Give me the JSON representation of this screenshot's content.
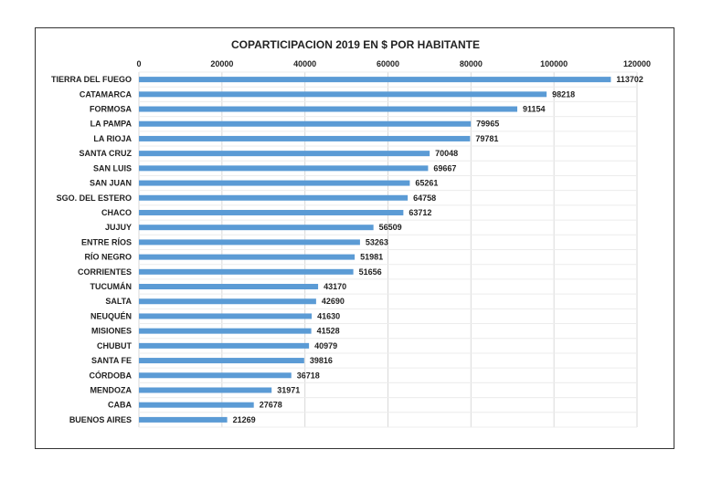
{
  "chart_data": {
    "type": "bar",
    "orientation": "horizontal",
    "title": "COPARTICIPACION 2019 EN $ POR HABITANTE",
    "xlim": [
      0,
      120000
    ],
    "x_ticks": [
      "0",
      "20000",
      "40000",
      "60000",
      "80000",
      "100000",
      "120000"
    ],
    "x_axis_position": "top",
    "grid": true,
    "bar_color": "#5b9bd5",
    "categories": [
      "TIERRA DEL FUEGO",
      "CATAMARCA",
      "FORMOSA",
      "LA PAMPA",
      "LA RIOJA",
      "SANTA CRUZ",
      "SAN LUIS",
      "SAN JUAN",
      "SGO. DEL ESTERO",
      "CHACO",
      "JUJUY",
      "ENTRE RÍOS",
      "RÍO NEGRO",
      "CORRIENTES",
      "TUCUMÁN",
      "SALTA",
      "NEUQUÉN",
      "MISIONES",
      "CHUBUT",
      "SANTA FE",
      "CÓRDOBA",
      "MENDOZA",
      "CABA",
      "BUENOS AIRES"
    ],
    "values": [
      113702,
      98218,
      91154,
      79965,
      79781,
      70048,
      69667,
      65261,
      64758,
      63712,
      56509,
      53263,
      51981,
      51656,
      43170,
      42690,
      41630,
      41528,
      40979,
      39816,
      36718,
      31971,
      27678,
      21269
    ]
  }
}
